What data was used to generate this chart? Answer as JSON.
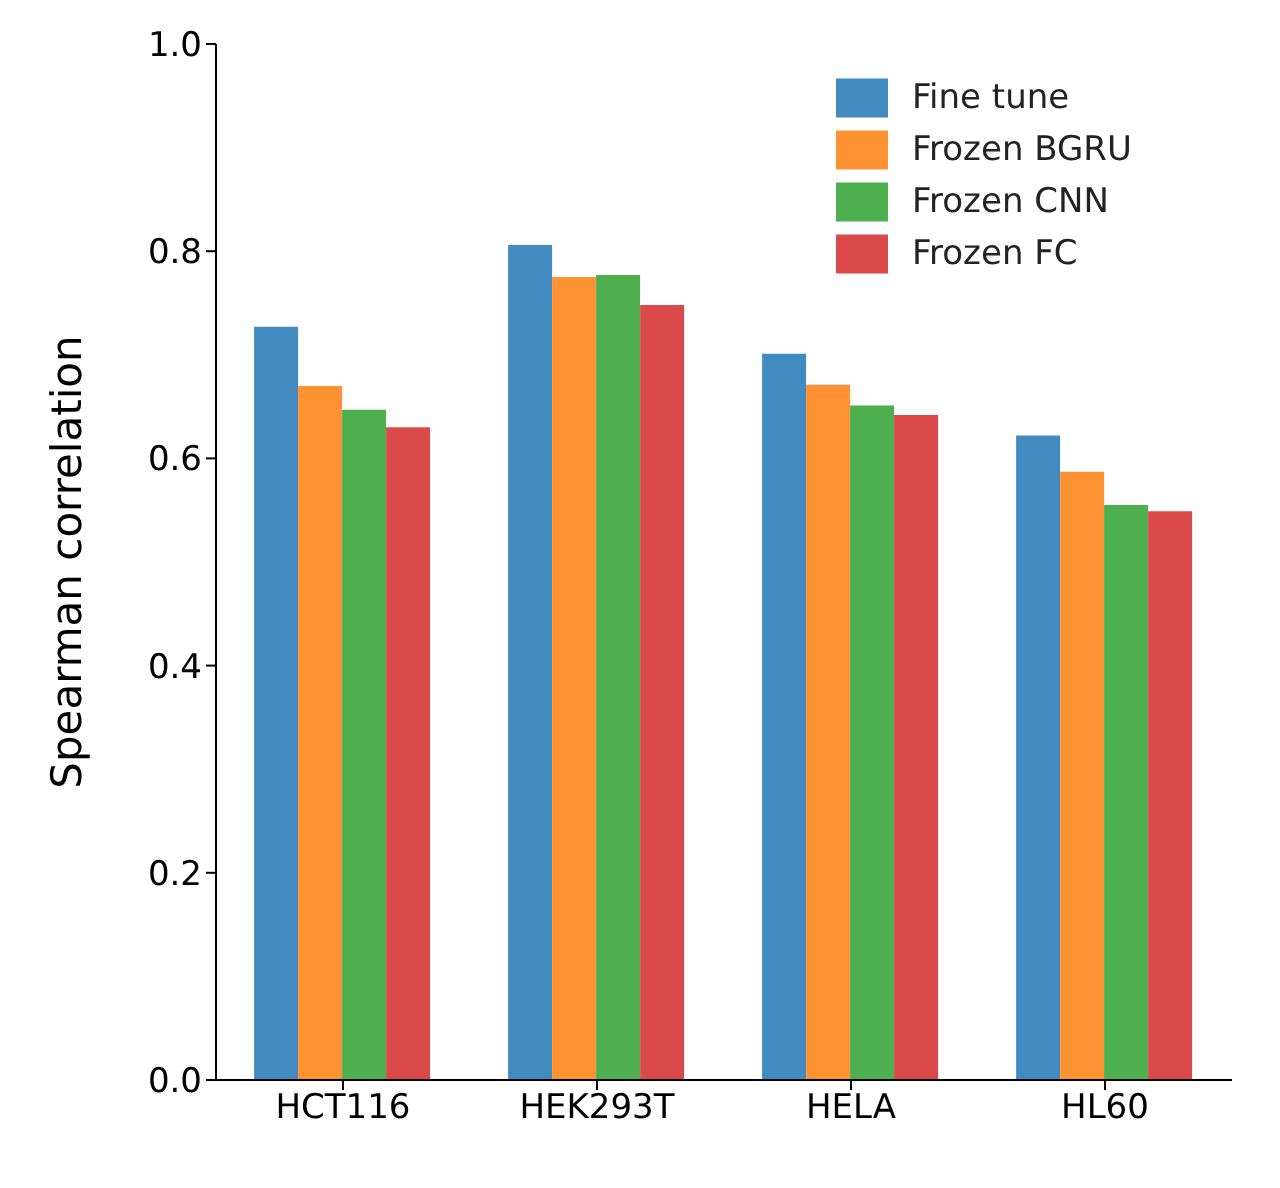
{
  "chart_data": {
    "type": "bar",
    "ylabel": "Spearman correlation",
    "categories": [
      "HCT116",
      "HEK293T",
      "HELA",
      "HL60"
    ],
    "series": [
      {
        "name": "Fine tune",
        "color": "#428bc1",
        "values": [
          0.727,
          0.806,
          0.701,
          0.622
        ]
      },
      {
        "name": "Frozen BGRU",
        "color": "#ff9333",
        "values": [
          0.67,
          0.775,
          0.671,
          0.587
        ]
      },
      {
        "name": "Frozen CNN",
        "color": "#4daf4d",
        "values": [
          0.647,
          0.777,
          0.651,
          0.555
        ]
      },
      {
        "name": "Frozen FC",
        "color": "#db4a4a",
        "values": [
          0.63,
          0.748,
          0.642,
          0.549
        ]
      }
    ],
    "ylim": [
      0,
      1
    ],
    "yticks": [
      {
        "value": 0,
        "label": "0.0"
      },
      {
        "value": 0.2,
        "label": "0.2"
      },
      {
        "value": 0.4,
        "label": "0.4"
      },
      {
        "value": 0.6,
        "label": "0.6"
      },
      {
        "value": 0.8,
        "label": "0.8"
      },
      {
        "value": 1,
        "label": "1.0"
      }
    ],
    "legend": "top right",
    "grid": false
  }
}
